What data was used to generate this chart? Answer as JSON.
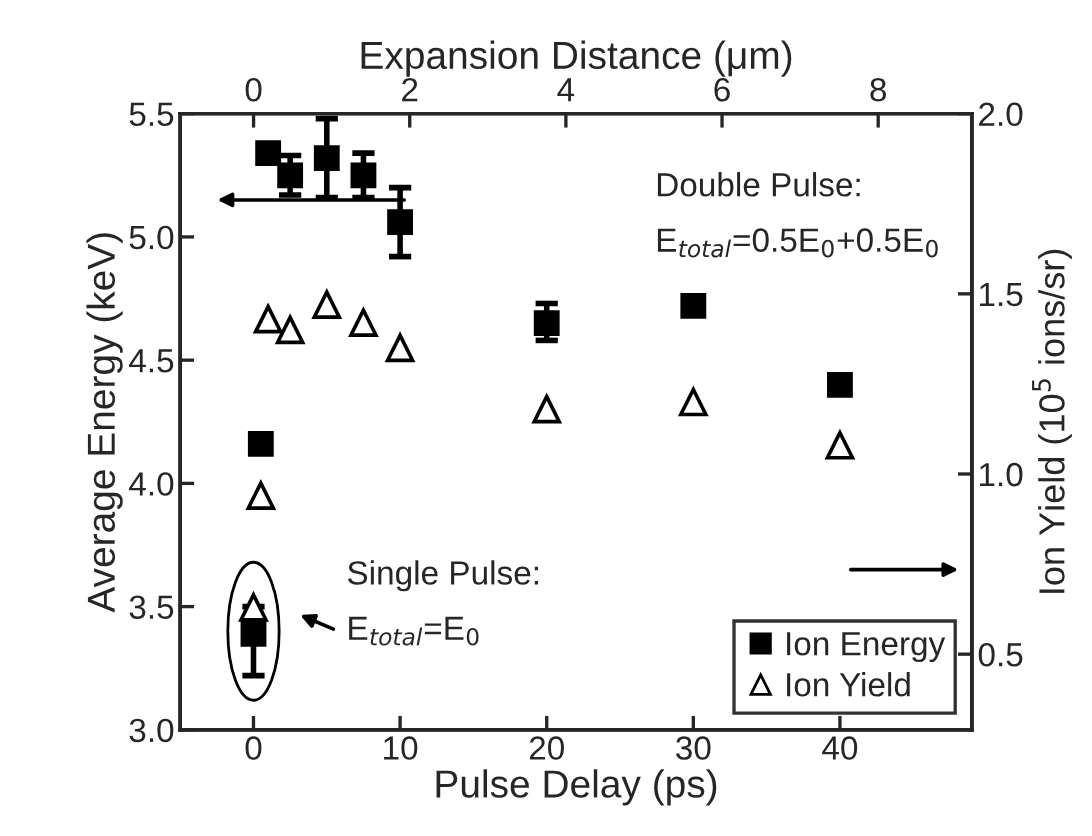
{
  "chart_data": {
    "type": "scatter",
    "xlabel": "Pulse Delay (ps)",
    "ylabel": "Average Energy (keV)",
    "y2label": "Ion Yield (10$^{5}$ ions/sr)",
    "x2label": "Expansion Distance (μm)",
    "xlim": [
      -5,
      49
    ],
    "xticks": [
      0,
      10,
      20,
      30,
      40
    ],
    "ylim": [
      3.0,
      5.5
    ],
    "yticks": [
      {
        "value": 3,
        "label": "3.0"
      },
      3.5,
      {
        "value": 4,
        "label": "4.0"
      },
      4.5,
      {
        "value": 5,
        "label": "5.0"
      },
      5.5
    ],
    "y2lim": [
      0.29,
      2.0
    ],
    "y2ticks": [
      0.5,
      {
        "value": 1,
        "label": "1.0"
      },
      1.5,
      {
        "value": 2,
        "label": "2.0"
      }
    ],
    "x2lim": [
      -0.94,
      9.2
    ],
    "x2ticks": [
      0,
      2,
      4,
      6,
      8
    ],
    "series": [
      {
        "name": "Ion Energy",
        "color": "#000000",
        "marker": "square",
        "axis": "y",
        "x": [
          0,
          0.5,
          1,
          2.5,
          5,
          7.5,
          10,
          20,
          30,
          40
        ],
        "values": [
          3.39,
          4.16,
          5.34,
          5.25,
          5.32,
          5.25,
          5.06,
          4.65,
          4.72,
          4.4
        ],
        "errors": [
          [
            3.22,
            3.5
          ],
          null,
          null,
          [
            5.17,
            5.33
          ],
          [
            5.16,
            5.48
          ],
          [
            5.16,
            5.34
          ],
          [
            4.92,
            5.2
          ],
          [
            4.58,
            4.73
          ],
          null,
          null
        ]
      },
      {
        "name": "Ion Yield",
        "color": "#000000",
        "marker": "triangle",
        "axis": "y2",
        "x": [
          0,
          0.5,
          1,
          2.5,
          5,
          7.5,
          10,
          20,
          30,
          40
        ],
        "values": [
          0.63,
          0.94,
          1.43,
          1.4,
          1.47,
          1.42,
          1.35,
          1.18,
          1.2,
          1.08
        ]
      }
    ],
    "legend": "bottom right",
    "annotations": [
      "Double Pulse:",
      "E$_{total}$=0.5E$_{0}$+0.5E$_{0}$",
      "Single Pulse:",
      "E$_{total}$=E$_{0}$"
    ]
  }
}
